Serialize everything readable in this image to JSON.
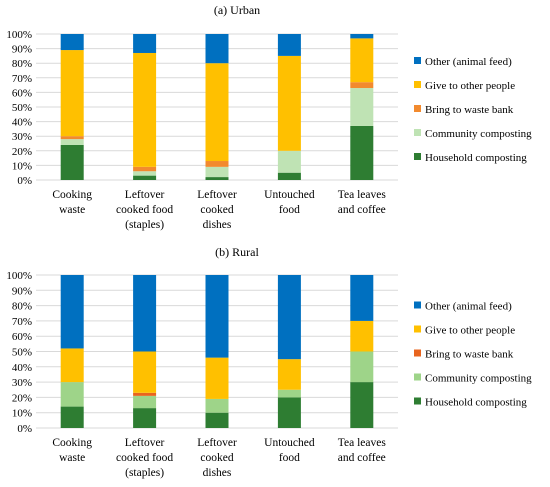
{
  "chart_data": [
    {
      "type": "bar",
      "stacked": true,
      "title": "(a) Urban",
      "ylim": [
        0,
        100
      ],
      "yticks": [
        "0%",
        "10%",
        "20%",
        "30%",
        "40%",
        "50%",
        "60%",
        "70%",
        "80%",
        "90%",
        "100%"
      ],
      "categories": [
        [
          "Cooking",
          "waste"
        ],
        [
          "Leftover",
          "cooked food",
          "(staples)"
        ],
        [
          "Leftover",
          "cooked",
          "dishes"
        ],
        [
          "Untouched",
          "food"
        ],
        [
          "Tea leaves",
          "and coffee"
        ]
      ],
      "grid": true,
      "legend_position": "right",
      "series": [
        {
          "name": "Household composting",
          "color": "#2e7d32",
          "values": [
            24,
            3,
            2,
            5,
            37
          ]
        },
        {
          "name": "Community composting",
          "color": "#bfe3b4",
          "values": [
            4,
            3,
            7,
            15,
            26
          ]
        },
        {
          "name": "Bring to waste bank",
          "color": "#f28a2e",
          "values": [
            2,
            3,
            4,
            0,
            4
          ]
        },
        {
          "name": "Give to other people",
          "color": "#ffc000",
          "values": [
            59,
            78,
            67,
            65,
            30
          ]
        },
        {
          "name": "Other (animal feed)",
          "color": "#0070c0",
          "values": [
            11,
            13,
            20,
            15,
            3
          ]
        }
      ]
    },
    {
      "type": "bar",
      "stacked": true,
      "title": "(b) Rural",
      "ylim": [
        0,
        100
      ],
      "yticks": [
        "0%",
        "10%",
        "20%",
        "30%",
        "40%",
        "50%",
        "60%",
        "70%",
        "80%",
        "90%",
        "100%"
      ],
      "categories": [
        [
          "Cooking",
          "waste"
        ],
        [
          "Leftover",
          "cooked food",
          "(staples)"
        ],
        [
          "Leftover",
          "cooked",
          "dishes"
        ],
        [
          "Untouched",
          "food"
        ],
        [
          "Tea leaves",
          "and coffee"
        ]
      ],
      "grid": true,
      "legend_position": "right",
      "series": [
        {
          "name": "Household composting",
          "color": "#2e7d32",
          "values": [
            14,
            13,
            10,
            20,
            30
          ]
        },
        {
          "name": "Community composting",
          "color": "#9ed489",
          "values": [
            16,
            8,
            9,
            5,
            20
          ]
        },
        {
          "name": "Bring to waste bank",
          "color": "#e8641e",
          "values": [
            0,
            2,
            0,
            0,
            0
          ]
        },
        {
          "name": "Give to other people",
          "color": "#ffc000",
          "values": [
            22,
            27,
            27,
            20,
            20
          ]
        },
        {
          "name": "Other (animal feed)",
          "color": "#0070c0",
          "values": [
            48,
            50,
            54,
            55,
            30
          ]
        }
      ]
    }
  ]
}
